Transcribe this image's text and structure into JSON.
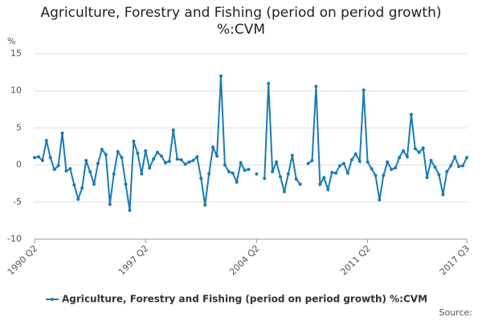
{
  "chart_data": {
    "type": "line",
    "title": "Agriculture, Forestry and Fishing (period on period growth) %:CVM",
    "ylabel": "%",
    "source": "Source:",
    "categories": [
      "1990 Q2",
      null,
      null,
      null,
      null,
      null,
      null,
      null,
      null,
      null,
      null,
      null,
      null,
      null,
      null,
      null,
      null,
      null,
      null,
      null,
      null,
      null,
      null,
      null,
      null,
      null,
      null,
      null,
      "1997 Q2",
      null,
      null,
      null,
      null,
      null,
      null,
      null,
      null,
      null,
      null,
      null,
      null,
      null,
      null,
      null,
      null,
      null,
      null,
      null,
      null,
      null,
      null,
      null,
      null,
      null,
      null,
      null,
      "2004 Q2",
      null,
      null,
      null,
      null,
      null,
      null,
      null,
      null,
      null,
      null,
      null,
      null,
      null,
      null,
      null,
      null,
      null,
      null,
      null,
      null,
      null,
      null,
      null,
      null,
      null,
      null,
      null,
      "2011 Q2",
      null,
      null,
      null,
      null,
      null,
      null,
      null,
      null,
      null,
      null,
      null,
      null,
      null,
      null,
      null,
      null,
      null,
      null,
      null,
      null,
      null,
      null,
      null,
      null,
      "2017 Q3"
    ],
    "series": [
      {
        "name": "Agriculture, Forestry and Fishing (period on period growth) %:CVM",
        "color": "#1a7ab5",
        "values": [
          1.0,
          1.1,
          0.6,
          3.3,
          1.0,
          -0.6,
          -0.1,
          4.3,
          -0.8,
          -0.5,
          -2.7,
          -4.6,
          -3.1,
          0.6,
          -0.9,
          -2.6,
          0.2,
          2.1,
          1.4,
          -5.3,
          -1.2,
          1.8,
          1.0,
          -2.6,
          -6.1,
          3.2,
          1.6,
          -1.2,
          1.9,
          -0.4,
          0.8,
          1.7,
          1.2,
          0.3,
          0.5,
          4.7,
          0.8,
          0.7,
          0.1,
          0.4,
          0.6,
          1.1,
          -1.8,
          -5.4,
          -1.2,
          2.4,
          1.2,
          12.0,
          0.0,
          -0.9,
          -1.1,
          -2.3,
          0.3,
          -0.7,
          -0.6,
          null,
          -1.2,
          null,
          -1.8,
          11.0,
          -0.9,
          0.4,
          -1.6,
          -3.6,
          -1.2,
          1.3,
          -1.9,
          -2.6,
          null,
          0.2,
          0.6,
          10.6,
          -2.6,
          -1.7,
          -3.3,
          -1.0,
          -1.1,
          -0.1,
          0.2,
          -1.1,
          0.7,
          1.5,
          0.5,
          10.1,
          0.4,
          -0.5,
          -1.4,
          -4.7,
          -1.4,
          0.4,
          -0.6,
          -0.4,
          1.0,
          1.9,
          1.1,
          6.8,
          2.2,
          1.7,
          2.3,
          -1.7,
          0.6,
          -0.3,
          -1.3,
          -4.0,
          -0.9,
          -0.1,
          1.1,
          -0.2,
          -0.1,
          1.0
        ]
      }
    ],
    "ylim": [
      -10,
      15
    ],
    "yticks": [
      -10,
      -5,
      0,
      5,
      10,
      15
    ],
    "grid": true
  }
}
